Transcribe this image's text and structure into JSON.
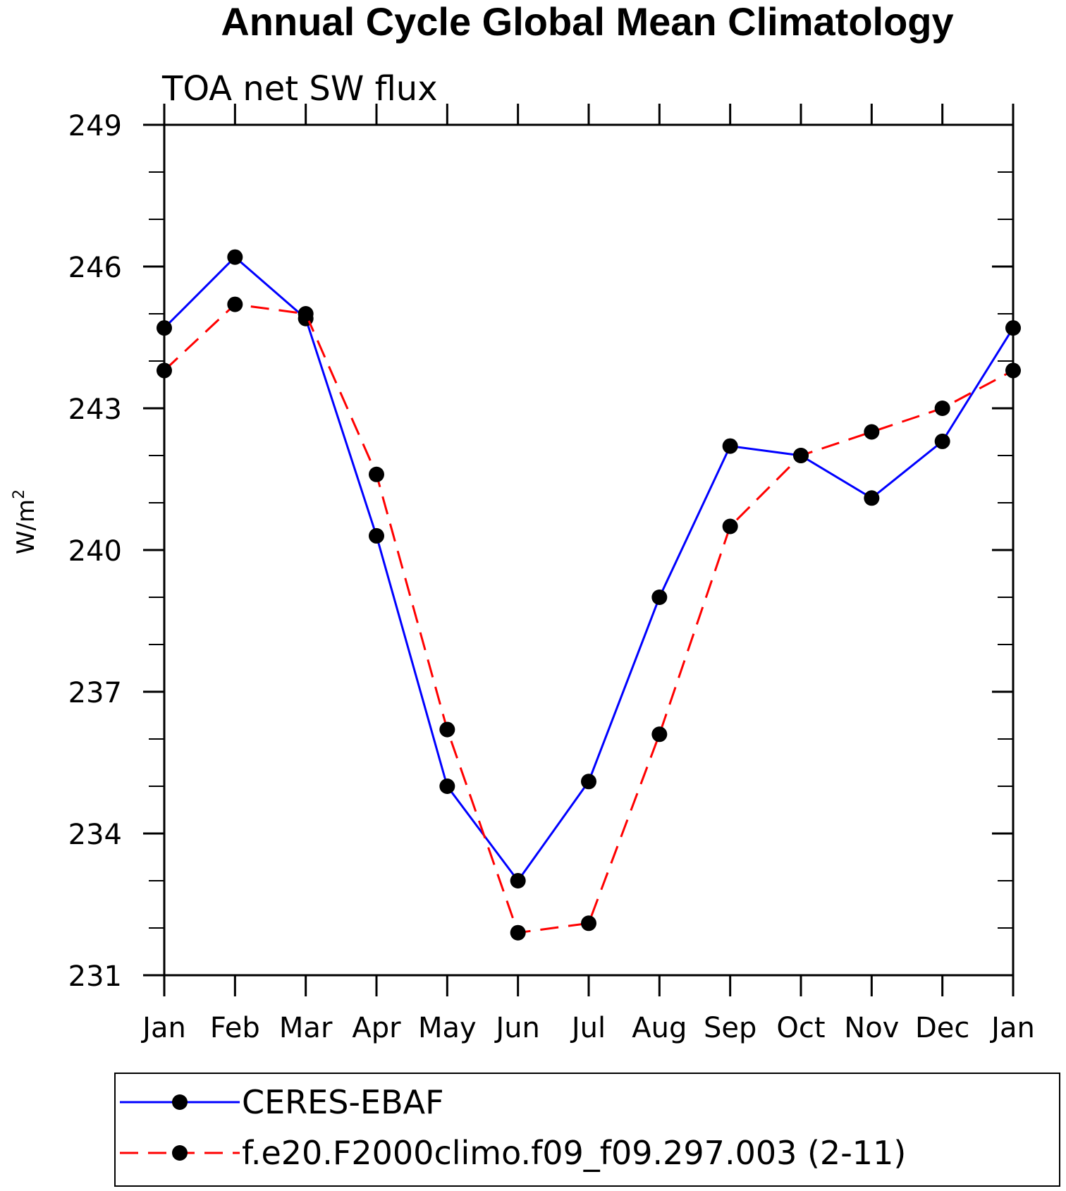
{
  "chart_data": {
    "type": "line",
    "title": "Annual Cycle Global Mean Climatology",
    "subtitle": "TOA net SW flux",
    "xlabel": "",
    "ylabel_base": "W/m",
    "ylabel_sup": "2",
    "categories": [
      "Jan",
      "Feb",
      "Mar",
      "Apr",
      "May",
      "Jun",
      "Jul",
      "Aug",
      "Sep",
      "Oct",
      "Nov",
      "Dec",
      "Jan"
    ],
    "ylim": [
      231,
      249
    ],
    "yticks": [
      231,
      234,
      237,
      240,
      243,
      246,
      249
    ],
    "yticks_labels": [
      "231",
      "234",
      "237",
      "240",
      "243",
      "246",
      "249"
    ],
    "series": [
      {
        "name": "CERES-EBAF",
        "color": "#0000ff",
        "dash": "solid",
        "values": [
          244.7,
          246.2,
          244.9,
          240.3,
          235.0,
          233.0,
          235.1,
          239.0,
          242.2,
          242.0,
          241.1,
          242.3,
          244.7
        ]
      },
      {
        "name": "f.e20.F2000climo.f09_f09.297.003 (2-11)",
        "color": "#ff0000",
        "dash": "dashed",
        "values": [
          243.8,
          245.2,
          245.0,
          241.6,
          236.2,
          231.9,
          232.1,
          236.1,
          240.5,
          242.0,
          242.5,
          243.0,
          243.8
        ]
      }
    ],
    "legend_position": "bottom"
  }
}
